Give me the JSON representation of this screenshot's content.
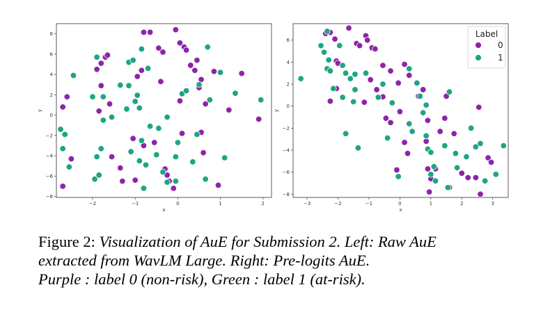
{
  "chart_data": [
    {
      "type": "scatter",
      "xlabel": "x",
      "ylabel": "y",
      "xlim": [
        -2.85,
        2.2
      ],
      "ylim": [
        -8.1,
        9.0
      ],
      "xticks": [
        -2,
        -1,
        0,
        1,
        2
      ],
      "yticks": [
        -8,
        -6,
        -4,
        -2,
        0,
        2,
        4,
        6,
        8
      ],
      "grid": false,
      "legend": false,
      "series": [
        {
          "label": "0",
          "color": "#8e24aa",
          "points": [
            [
              -2.7,
              -7.0
            ],
            [
              -2.5,
              -4.3
            ],
            [
              -2.6,
              1.8
            ],
            [
              -2.7,
              0.8
            ],
            [
              -1.9,
              4.5
            ],
            [
              -1.8,
              5.1
            ],
            [
              -1.7,
              5.7
            ],
            [
              -1.65,
              5.9
            ],
            [
              -1.8,
              2.9
            ],
            [
              -1.85,
              0.4
            ],
            [
              -1.6,
              1.1
            ],
            [
              -1.55,
              -4.1
            ],
            [
              -1.35,
              -5.2
            ],
            [
              -1.3,
              -6.5
            ],
            [
              -1.05,
              -2.3
            ],
            [
              -1.0,
              -6.4
            ],
            [
              -0.95,
              3.8
            ],
            [
              -0.85,
              4.4
            ],
            [
              -0.8,
              -3.0
            ],
            [
              -0.8,
              8.15
            ],
            [
              -0.65,
              8.15
            ],
            [
              -0.55,
              -2.7
            ],
            [
              -0.45,
              6.6
            ],
            [
              -0.35,
              6.2
            ],
            [
              -0.3,
              -5.3
            ],
            [
              -0.25,
              -5.9
            ],
            [
              -0.2,
              -6.5
            ],
            [
              -0.4,
              3.3
            ],
            [
              -0.1,
              -7.2
            ],
            [
              -0.05,
              8.4
            ],
            [
              0.05,
              7.1
            ],
            [
              0.1,
              -1.8
            ],
            [
              0.05,
              1.4
            ],
            [
              0.15,
              6.7
            ],
            [
              0.2,
              6.4
            ],
            [
              0.3,
              4.9
            ],
            [
              0.4,
              4.4
            ],
            [
              0.45,
              5.4
            ],
            [
              0.55,
              3.5
            ],
            [
              0.5,
              2.7
            ],
            [
              0.6,
              -3.7
            ],
            [
              0.55,
              -1.7
            ],
            [
              0.65,
              1.1
            ],
            [
              0.85,
              4.3
            ],
            [
              0.95,
              -6.9
            ],
            [
              1.2,
              0.5
            ],
            [
              1.5,
              4.1
            ],
            [
              1.9,
              -0.4
            ],
            [
              -0.25,
              -0.2
            ]
          ]
        },
        {
          "label": "1",
          "color": "#1fa584",
          "points": [
            [
              -2.75,
              -1.4
            ],
            [
              -2.7,
              -3.3
            ],
            [
              -2.65,
              -1.9
            ],
            [
              -2.55,
              -5.1
            ],
            [
              -2.45,
              3.9
            ],
            [
              -2.0,
              1.8
            ],
            [
              -1.95,
              -6.3
            ],
            [
              -1.9,
              -4.1
            ],
            [
              -1.9,
              5.7
            ],
            [
              -1.85,
              -5.9
            ],
            [
              -1.8,
              -3.3
            ],
            [
              -1.75,
              1.8
            ],
            [
              -1.75,
              -0.5
            ],
            [
              -1.55,
              -0.2
            ],
            [
              -1.35,
              2.95
            ],
            [
              -1.2,
              0.6
            ],
            [
              -1.15,
              2.9
            ],
            [
              -1.15,
              5.2
            ],
            [
              -1.05,
              5.4
            ],
            [
              -1.1,
              -3.6
            ],
            [
              -1.0,
              1.35
            ],
            [
              -0.9,
              -4.5
            ],
            [
              -0.85,
              -2.5
            ],
            [
              -0.8,
              -7.2
            ],
            [
              -0.75,
              -4.9
            ],
            [
              -0.95,
              1.95
            ],
            [
              -0.9,
              0.7
            ],
            [
              -0.85,
              6.5
            ],
            [
              -0.7,
              4.6
            ],
            [
              -0.65,
              -1.1
            ],
            [
              -0.5,
              -3.9
            ],
            [
              -0.45,
              -1.3
            ],
            [
              -0.35,
              -5.6
            ],
            [
              -0.25,
              -0.2
            ],
            [
              -0.25,
              -6.6
            ],
            [
              -0.05,
              -4.1
            ],
            [
              -0.05,
              -6.5
            ],
            [
              0.0,
              -2.7
            ],
            [
              0.1,
              2.1
            ],
            [
              0.2,
              2.4
            ],
            [
              0.35,
              -4.6
            ],
            [
              0.45,
              -1.9
            ],
            [
              0.5,
              3.0
            ],
            [
              0.65,
              -6.3
            ],
            [
              0.7,
              6.7
            ],
            [
              0.75,
              1.5
            ],
            [
              1.0,
              4.2
            ],
            [
              1.1,
              -4.2
            ],
            [
              1.35,
              2.15
            ],
            [
              1.95,
              1.5
            ],
            [
              0.0,
              -2.7
            ]
          ]
        }
      ]
    },
    {
      "type": "scatter",
      "xlabel": "x",
      "ylabel": "y",
      "xlim": [
        -3.45,
        3.5
      ],
      "ylim": [
        -8.3,
        7.5
      ],
      "xticks": [
        -3,
        -2,
        -1,
        0,
        1,
        2,
        3
      ],
      "yticks": [
        -8,
        -6,
        -4,
        -2,
        0,
        2,
        4,
        6
      ],
      "grid": false,
      "legend": true,
      "legend_position": "top-right",
      "legend_title": "Label",
      "series": [
        {
          "label": "0",
          "color": "#8e24aa",
          "points": [
            [
              -2.4,
              6.6
            ],
            [
              -2.25,
              6.7
            ],
            [
              -2.1,
              6.1
            ],
            [
              -2.05,
              4.1
            ],
            [
              -2.0,
              3.9
            ],
            [
              -2.05,
              1.6
            ],
            [
              -2.25,
              0.45
            ],
            [
              -1.65,
              7.1
            ],
            [
              -1.4,
              5.7
            ],
            [
              -1.3,
              5.5
            ],
            [
              -1.1,
              6.4
            ],
            [
              -1.05,
              6.0
            ],
            [
              -0.9,
              5.3
            ],
            [
              -0.8,
              5.2
            ],
            [
              -0.95,
              2.4
            ],
            [
              -1.15,
              0.35
            ],
            [
              -0.55,
              3.7
            ],
            [
              -0.3,
              3.2
            ],
            [
              -0.05,
              2.1
            ],
            [
              0.15,
              3.8
            ],
            [
              0.3,
              2.8
            ],
            [
              -0.75,
              1.5
            ],
            [
              -0.55,
              0.85
            ],
            [
              -0.45,
              -1.1
            ],
            [
              -0.3,
              -1.5
            ],
            [
              0.0,
              -0.5
            ],
            [
              -0.1,
              -5.8
            ],
            [
              0.15,
              -3.3
            ],
            [
              0.25,
              -4.3
            ],
            [
              0.6,
              0.9
            ],
            [
              0.75,
              1.5
            ],
            [
              0.9,
              -1.3
            ],
            [
              0.85,
              -3.2
            ],
            [
              0.9,
              -5.7
            ],
            [
              1.0,
              -6.6
            ],
            [
              0.95,
              -7.8
            ],
            [
              1.15,
              -5.7
            ],
            [
              1.3,
              -2.3
            ],
            [
              1.5,
              0.9
            ],
            [
              1.45,
              -1.1
            ],
            [
              1.75,
              -2.5
            ],
            [
              2.0,
              -6.1
            ],
            [
              2.2,
              -6.5
            ],
            [
              2.55,
              -0.1
            ],
            [
              2.6,
              -8.0
            ],
            [
              2.45,
              -6.5
            ],
            [
              2.85,
              -4.7
            ],
            [
              2.95,
              -5.1
            ],
            [
              1.6,
              -7.4
            ]
          ]
        },
        {
          "label": "1",
          "color": "#1fa584",
          "points": [
            [
              -3.2,
              2.5
            ],
            [
              -2.55,
              5.5
            ],
            [
              -2.45,
              4.9
            ],
            [
              -2.35,
              3.4
            ],
            [
              -2.25,
              3.2
            ],
            [
              -2.15,
              1.6
            ],
            [
              -2.3,
              4.2
            ],
            [
              -2.35,
              6.8
            ],
            [
              -1.95,
              5.5
            ],
            [
              -1.85,
              3.7
            ],
            [
              -1.75,
              3.0
            ],
            [
              -1.6,
              2.5
            ],
            [
              -1.45,
              2.9
            ],
            [
              -1.45,
              1.5
            ],
            [
              -1.5,
              0.4
            ],
            [
              -1.75,
              -2.5
            ],
            [
              -1.35,
              -3.8
            ],
            [
              -1.85,
              0.8
            ],
            [
              -1.1,
              3.0
            ],
            [
              -0.7,
              0.8
            ],
            [
              -0.55,
              2.0
            ],
            [
              -0.25,
              0.3
            ],
            [
              0.3,
              3.4
            ],
            [
              0.3,
              -1.6
            ],
            [
              0.4,
              -2.3
            ],
            [
              0.55,
              2.1
            ],
            [
              0.65,
              0.9
            ],
            [
              0.75,
              -0.6
            ],
            [
              0.85,
              0.1
            ],
            [
              0.9,
              -3.9
            ],
            [
              0.85,
              -2.7
            ],
            [
              1.0,
              -4.2
            ],
            [
              1.1,
              -5.5
            ],
            [
              1.15,
              -6.8
            ],
            [
              1.45,
              -3.6
            ],
            [
              1.55,
              -7.4
            ],
            [
              1.8,
              -4.3
            ],
            [
              1.85,
              -5.6
            ],
            [
              1.6,
              1.3
            ],
            [
              2.15,
              -4.6
            ],
            [
              2.3,
              -2.0
            ],
            [
              2.45,
              -3.7
            ],
            [
              2.6,
              -3.4
            ],
            [
              2.75,
              -6.8
            ],
            [
              3.1,
              -6.2
            ],
            [
              3.35,
              -3.6
            ],
            [
              -0.05,
              -6.4
            ],
            [
              -0.4,
              -2.9
            ],
            [
              1.0,
              -6.2
            ]
          ]
        }
      ]
    }
  ],
  "caption": {
    "line1_prefix": "Figure 2: ",
    "line1_italic": "Visualization of AuE for Submission 2. Left: Raw AuE",
    "line2_italic": "extracted from WavLM Large. Right: Pre-logits AuE.",
    "line3_italic": "Purple : label 0 (non-risk), Green : label 1 (at-risk)."
  }
}
